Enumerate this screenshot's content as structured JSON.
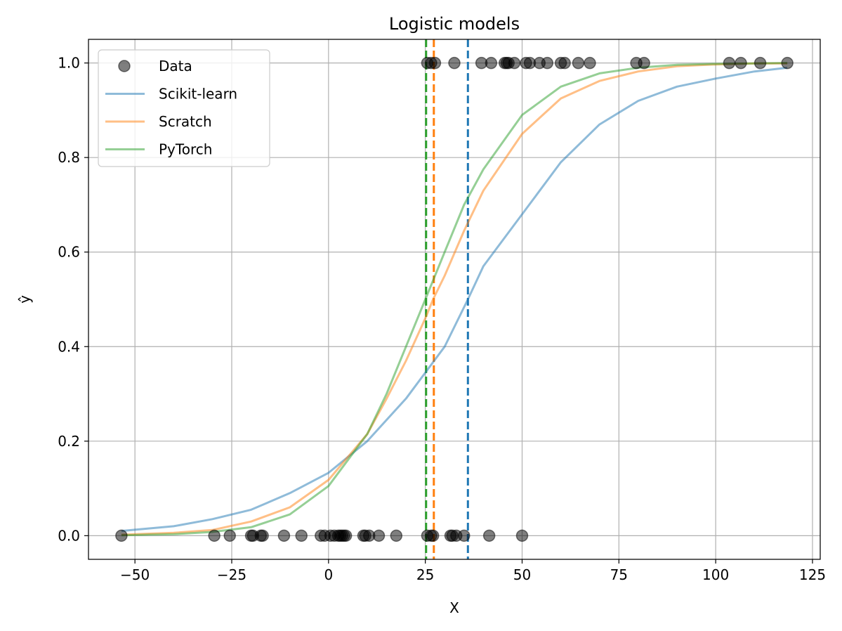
{
  "chart_data": {
    "type": "scatter",
    "title": "Logistic models",
    "xlabel": "X",
    "ylabel": "ŷ",
    "xlim": [
      -62,
      127
    ],
    "ylim": [
      -0.05,
      1.05
    ],
    "xticks": [
      -50,
      -25,
      0,
      25,
      50,
      75,
      100,
      125
    ],
    "xtick_labels": [
      "−50",
      "−25",
      "0",
      "25",
      "50",
      "75",
      "100",
      "125"
    ],
    "yticks": [
      0.0,
      0.2,
      0.4,
      0.6,
      0.8,
      1.0
    ],
    "ytick_labels": [
      "0.0",
      "0.2",
      "0.4",
      "0.6",
      "0.8",
      "1.0"
    ],
    "grid": true,
    "legend_position": "top-left",
    "legend": [
      "Data",
      "Scikit-learn",
      "Scratch",
      "PyTorch"
    ],
    "series": [
      {
        "name": "Data",
        "kind": "scatter",
        "color": "#000000",
        "points": [
          [
            -53.5,
            0
          ],
          [
            -29.5,
            0
          ],
          [
            -25.5,
            0
          ],
          [
            -20,
            0
          ],
          [
            -19.5,
            0
          ],
          [
            -17.5,
            0
          ],
          [
            -17,
            0
          ],
          [
            -11.5,
            0
          ],
          [
            -7,
            0
          ],
          [
            -2,
            0
          ],
          [
            -1,
            0
          ],
          [
            0.5,
            0
          ],
          [
            1.5,
            0
          ],
          [
            2.5,
            0
          ],
          [
            3,
            0
          ],
          [
            3.5,
            0
          ],
          [
            4,
            0
          ],
          [
            4.5,
            0
          ],
          [
            9,
            0
          ],
          [
            9.5,
            0
          ],
          [
            10.5,
            0
          ],
          [
            13,
            0
          ],
          [
            17.5,
            0
          ],
          [
            25.5,
            0
          ],
          [
            26.5,
            0
          ],
          [
            27,
            0
          ],
          [
            31.5,
            0
          ],
          [
            32,
            0
          ],
          [
            33,
            0
          ],
          [
            35,
            0
          ],
          [
            41.5,
            0
          ],
          [
            50,
            0
          ],
          [
            25.5,
            1
          ],
          [
            26.5,
            1
          ],
          [
            27.5,
            1
          ],
          [
            32.5,
            1
          ],
          [
            39.5,
            1
          ],
          [
            42,
            1
          ],
          [
            45.5,
            1
          ],
          [
            46,
            1
          ],
          [
            46.5,
            1
          ],
          [
            48,
            1
          ],
          [
            51,
            1
          ],
          [
            52,
            1
          ],
          [
            54.5,
            1
          ],
          [
            56.5,
            1
          ],
          [
            60,
            1
          ],
          [
            61,
            1
          ],
          [
            64.5,
            1
          ],
          [
            67.5,
            1
          ],
          [
            79.5,
            1
          ],
          [
            81.5,
            1
          ],
          [
            103.5,
            1
          ],
          [
            106.5,
            1
          ],
          [
            111.5,
            1
          ],
          [
            118.5,
            1
          ]
        ]
      },
      {
        "name": "Scikit-learn",
        "kind": "line",
        "color": "#1f77b4",
        "x": [
          -53.5,
          -40,
          -30,
          -20,
          -10,
          0,
          10,
          20,
          30,
          36,
          40,
          50,
          60,
          70,
          80,
          90,
          100,
          110,
          118.5
        ],
        "values": [
          0.01,
          0.02,
          0.035,
          0.055,
          0.09,
          0.133,
          0.2,
          0.29,
          0.4,
          0.5,
          0.57,
          0.68,
          0.79,
          0.87,
          0.92,
          0.95,
          0.967,
          0.982,
          0.99
        ]
      },
      {
        "name": "Scratch",
        "kind": "line",
        "color": "#ff7f0e",
        "x": [
          -53.5,
          -40,
          -30,
          -20,
          -10,
          0,
          10,
          15,
          20,
          25,
          27,
          30,
          35,
          40,
          50,
          60,
          70,
          80,
          90,
          100,
          110,
          118.5
        ],
        "values": [
          0.002,
          0.006,
          0.012,
          0.03,
          0.06,
          0.118,
          0.215,
          0.29,
          0.37,
          0.46,
          0.5,
          0.55,
          0.645,
          0.73,
          0.85,
          0.925,
          0.962,
          0.982,
          0.993,
          0.997,
          0.999,
          0.999
        ]
      },
      {
        "name": "PyTorch",
        "kind": "line",
        "color": "#2ca02c",
        "x": [
          -53.5,
          -40,
          -30,
          -20,
          -10,
          0,
          10,
          15,
          20,
          25,
          30,
          35,
          40,
          50,
          60,
          70,
          80,
          90,
          100,
          110,
          118.5
        ],
        "values": [
          0.001,
          0.003,
          0.008,
          0.018,
          0.045,
          0.105,
          0.215,
          0.3,
          0.4,
          0.5,
          0.6,
          0.7,
          0.775,
          0.89,
          0.95,
          0.978,
          0.99,
          0.996,
          0.998,
          0.999,
          1.0
        ]
      }
    ],
    "vlines": [
      {
        "x": 25.2,
        "color": "#2ca02c",
        "style": "dashed"
      },
      {
        "x": 27.2,
        "color": "#ff7f0e",
        "style": "dashed"
      },
      {
        "x": 36.0,
        "color": "#1f77b4",
        "style": "dashed"
      }
    ]
  }
}
